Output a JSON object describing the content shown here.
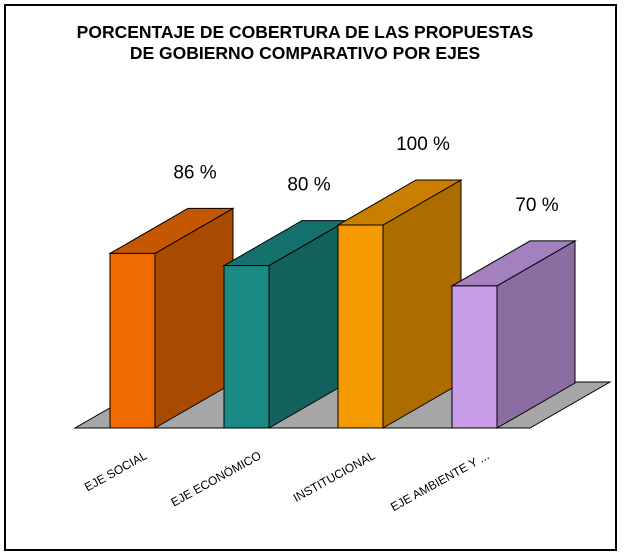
{
  "chart_data": {
    "type": "bar3d",
    "title": "PORCENTAJE DE COBERTURA DE LAS PROPUESTAS DE GOBIERNO COMPARATIVO POR EJES",
    "categories": [
      "EJE SOCIAL",
      "EJE ECONÓMICO",
      "INSTITUCIONAL",
      "EJE AMBIENTE Y ..."
    ],
    "values": [
      86,
      80,
      100,
      70
    ],
    "value_labels": [
      "86 %",
      "80 %",
      "100 %",
      "70 %"
    ],
    "colors": [
      "#f06a00",
      "#1a8a84",
      "#f59a00",
      "#c79ce8"
    ]
  }
}
